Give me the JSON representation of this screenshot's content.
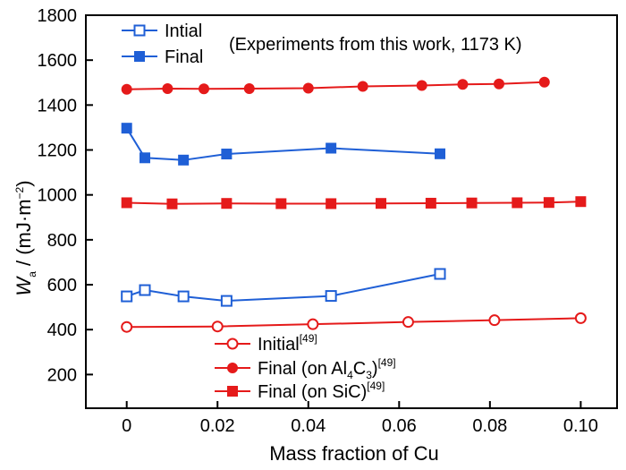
{
  "chart_data": {
    "type": "scatter",
    "xlabel": "Mass  fraction of Cu",
    "ylabel_main": "W",
    "ylabel_sub": "a",
    "ylabel_rest": " / (mJ·m",
    "ylabel_sup": "−2",
    "ylabel_end": ")",
    "xlim": [
      -0.009,
      0.108
    ],
    "ylim": [
      50,
      1800
    ],
    "x_ticks": [
      0,
      0.02,
      0.04,
      0.06,
      0.08,
      0.1
    ],
    "x_tick_labels": [
      "0",
      "0.02",
      "0.04",
      "0.06",
      "0.08",
      "0.10"
    ],
    "y_ticks": [
      200,
      400,
      600,
      800,
      1000,
      1200,
      1400,
      1600,
      1800
    ],
    "y_tick_labels": [
      "200",
      "400",
      "600",
      "800",
      "1000",
      "1200",
      "1400",
      "1600",
      "1800"
    ],
    "grid": false,
    "annotation": "(Experiments from this work, 1173 K)",
    "series": [
      {
        "id": "intial",
        "name": "Intial",
        "color": "#1f5fd6",
        "marker": "open-square",
        "x": [
          0,
          0.004,
          0.0125,
          0.022,
          0.045,
          0.069
        ],
        "y": [
          548,
          576,
          548,
          528,
          550,
          648
        ]
      },
      {
        "id": "final",
        "name": "Final",
        "color": "#1f5fd6",
        "marker": "filled-square",
        "x": [
          0,
          0.004,
          0.0125,
          0.022,
          0.045,
          0.069
        ],
        "y": [
          1297,
          1165,
          1155,
          1182,
          1208,
          1183
        ]
      },
      {
        "id": "initial49",
        "name": "Initial",
        "ref": "[49]",
        "color": "#e51a1a",
        "marker": "open-circle",
        "x": [
          0,
          0.02,
          0.041,
          0.062,
          0.081,
          0.1
        ],
        "y": [
          412,
          414,
          424,
          434,
          442,
          451
        ]
      },
      {
        "id": "final_al4c3",
        "name": "Final (on Al",
        "name_sub": "4",
        "name_mid": "C",
        "name_sub2": "3",
        "name_end": ")",
        "ref": "[49]",
        "color": "#e51a1a",
        "marker": "filled-circle",
        "x": [
          0,
          0.009,
          0.017,
          0.027,
          0.04,
          0.052,
          0.065,
          0.074,
          0.082,
          0.092
        ],
        "y": [
          1470,
          1473,
          1472,
          1473,
          1475,
          1483,
          1487,
          1492,
          1494,
          1502
        ]
      },
      {
        "id": "final_sic",
        "name": "Final (on SiC)",
        "ref": "[49]",
        "color": "#e51a1a",
        "marker": "filled-square",
        "x": [
          0,
          0.01,
          0.022,
          0.034,
          0.045,
          0.056,
          0.067,
          0.076,
          0.086,
          0.093,
          0.1
        ],
        "y": [
          965,
          960,
          962,
          961,
          961,
          962,
          963,
          964,
          965,
          966,
          970
        ]
      }
    ]
  }
}
